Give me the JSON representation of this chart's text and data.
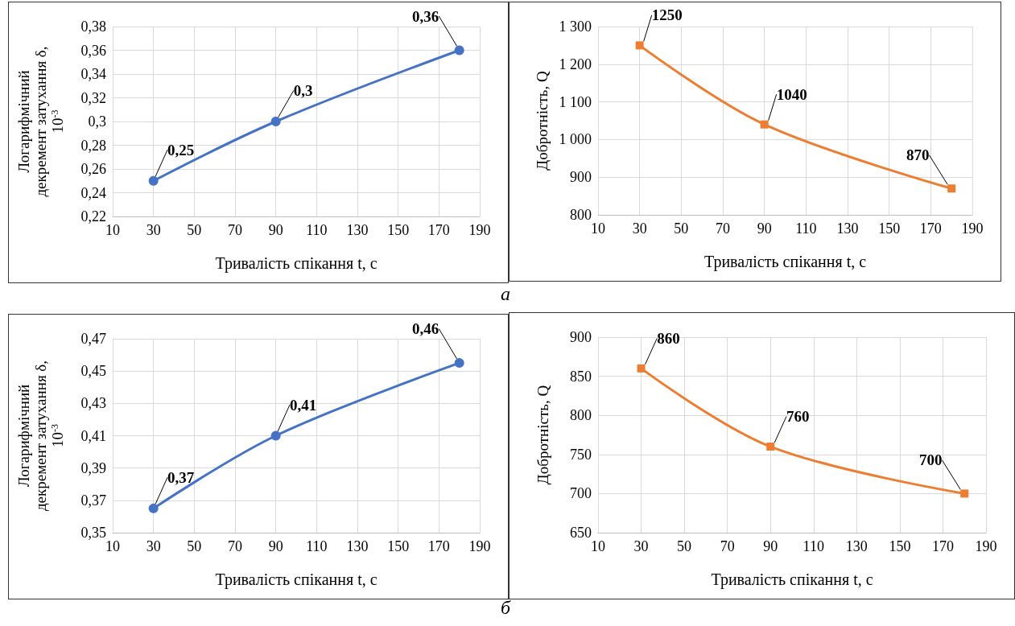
{
  "chart_data": [
    {
      "type": "line",
      "xlabel": "Тривалість спікання t, с",
      "ylabel": "Логарифмічний декремент затухання δ, 10$^{-3}$",
      "x": [
        30,
        90,
        180
      ],
      "series": [
        {
          "color": "#4472c4",
          "values": [
            0.25,
            0.3,
            0.36
          ],
          "value_labels": [
            "0,25",
            "0,3",
            "0,36"
          ]
        }
      ],
      "xlim": [
        10,
        190
      ],
      "xticks": [
        10,
        30,
        50,
        70,
        90,
        110,
        130,
        150,
        170,
        190
      ],
      "ylim": [
        0.22,
        0.38
      ],
      "yticks": [
        {
          "value": 0.22,
          "label": "0,22"
        },
        {
          "value": 0.24,
          "label": "0,24"
        },
        {
          "value": 0.26,
          "label": "0,26"
        },
        {
          "value": 0.28,
          "label": "0,28"
        },
        {
          "value": 0.3,
          "label": "0,3"
        },
        {
          "value": 0.32,
          "label": "0,32"
        },
        {
          "value": 0.34,
          "label": "0,34"
        },
        {
          "value": 0.36,
          "label": "0,36"
        },
        {
          "value": 0.38,
          "label": "0,38"
        }
      ],
      "grid": true,
      "marker": "circle",
      "line_style": "solid",
      "annotations": [
        "а"
      ]
    },
    {
      "type": "line",
      "xlabel": "Тривалість спікання t, с",
      "ylabel": "Добротність, Q",
      "x": [
        30,
        90,
        180
      ],
      "series": [
        {
          "color": "#ed7d31",
          "values": [
            1250,
            1040,
            870
          ]
        }
      ],
      "xlim": [
        10,
        190
      ],
      "xticks": [
        10,
        30,
        50,
        70,
        90,
        110,
        130,
        150,
        170,
        190
      ],
      "ylim": [
        800,
        1300
      ],
      "yticks": [
        800,
        900,
        {
          "value": 1000,
          "label": "1 000"
        },
        {
          "value": 1100,
          "label": "1 100"
        },
        {
          "value": 1200,
          "label": "1 200"
        },
        {
          "value": 1300,
          "label": "1 300"
        }
      ],
      "grid": true,
      "marker": "square",
      "line_style": "solid",
      "data_labels": true
    },
    {
      "type": "line",
      "xlabel": "Тривалість спікання t, с",
      "ylabel": "Логарифмічний декремент затухання δ, 10$^{-3}$",
      "x": [
        30,
        90,
        180
      ],
      "series": [
        {
          "color": "#4472c4",
          "values": [
            0.365,
            0.41,
            0.455
          ],
          "value_labels": [
            "0,37",
            "0,41",
            "0,46"
          ]
        }
      ],
      "xlim": [
        10,
        190
      ],
      "xticks": [
        10,
        30,
        50,
        70,
        90,
        110,
        130,
        150,
        170,
        190
      ],
      "ylim": [
        0.35,
        0.47
      ],
      "yticks": [
        {
          "value": 0.35,
          "label": "0,35"
        },
        {
          "value": 0.37,
          "label": "0,37"
        },
        {
          "value": 0.39,
          "label": "0,39"
        },
        {
          "value": 0.41,
          "label": "0,41"
        },
        {
          "value": 0.43,
          "label": "0,43"
        },
        {
          "value": 0.45,
          "label": "0,45"
        },
        {
          "value": 0.47,
          "label": "0,47"
        }
      ],
      "grid": true,
      "marker": "circle",
      "line_style": "solid",
      "annotations": [
        "б"
      ]
    },
    {
      "type": "line",
      "xlabel": "Тривалість спікання t, с",
      "ylabel": "Добротність, Q",
      "x": [
        30,
        90,
        180
      ],
      "series": [
        {
          "color": "#ed7d31",
          "values": [
            860,
            760,
            700
          ]
        }
      ],
      "xlim": [
        10,
        190
      ],
      "xticks": [
        10,
        30,
        50,
        70,
        90,
        110,
        130,
        150,
        170,
        190
      ],
      "ylim": [
        650,
        900
      ],
      "yticks": [
        650,
        700,
        750,
        800,
        850,
        900
      ],
      "grid": true,
      "marker": "square",
      "line_style": "solid",
      "data_labels": true
    }
  ]
}
